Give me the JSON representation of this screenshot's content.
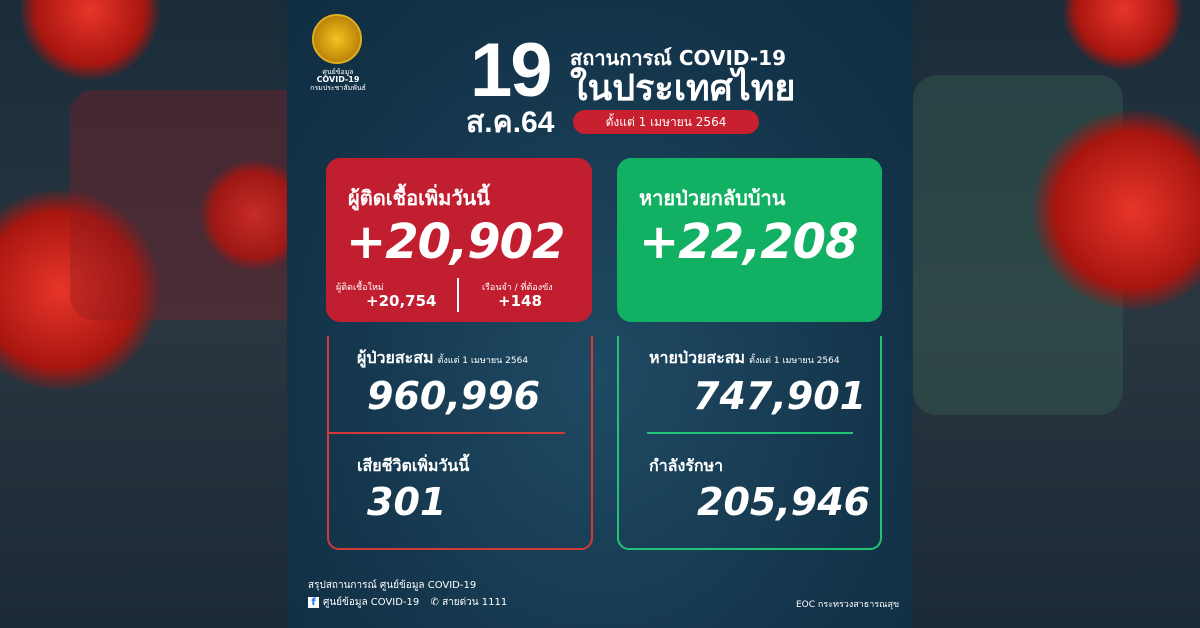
{
  "header": {
    "logo_text": [
      "ศูนย์ข้อมูล",
      "COVID-19",
      "กรมประชาสัมพันธ์"
    ],
    "day": "19",
    "month_year": "ส.ค.64",
    "title_line1": "สถานการณ์ COVID-19",
    "title_line2": "ในประเทศไทย",
    "since": "ตั้งแต่ 1 เมษายน 2564"
  },
  "new_cases": {
    "title": "ผู้ติดเชื้อเพิ่มวันนี้",
    "value": "+20,902",
    "local_label": "ผู้ติดเชื้อใหม่",
    "local_value": "+20,754",
    "prison_label": "เรือนจำ / ที่ต้องขัง",
    "prison_value": "+148"
  },
  "recovered_today": {
    "title": "หายป่วยกลับบ้าน",
    "value": "+22,208"
  },
  "cumulative": {
    "label": "ผู้ป่วยสะสม",
    "since": "ตั้งแต่ 1 เมษายน 2564",
    "value": "960,996",
    "deaths_label": "เสียชีวิตเพิ่มวันนี้",
    "deaths_value": "301"
  },
  "recovered": {
    "label": "หายป่วยสะสม",
    "since": "ตั้งแต่ 1 เมษายน 2564",
    "value": "747,901",
    "treating_label": "กำลังรักษา",
    "treating_value": "205,946"
  },
  "footer": {
    "summary": "สรุปสถานการณ์ ศูนย์ข้อมูล COVID-19",
    "facebook": "ศูนย์ข้อมูล COVID-19",
    "hotline": "สายด่วน 1111",
    "source": "EOC กระทรวงสาธารณสุข"
  },
  "colors": {
    "panel": "#133349",
    "red": "#c11f2f",
    "green": "#12b062"
  }
}
